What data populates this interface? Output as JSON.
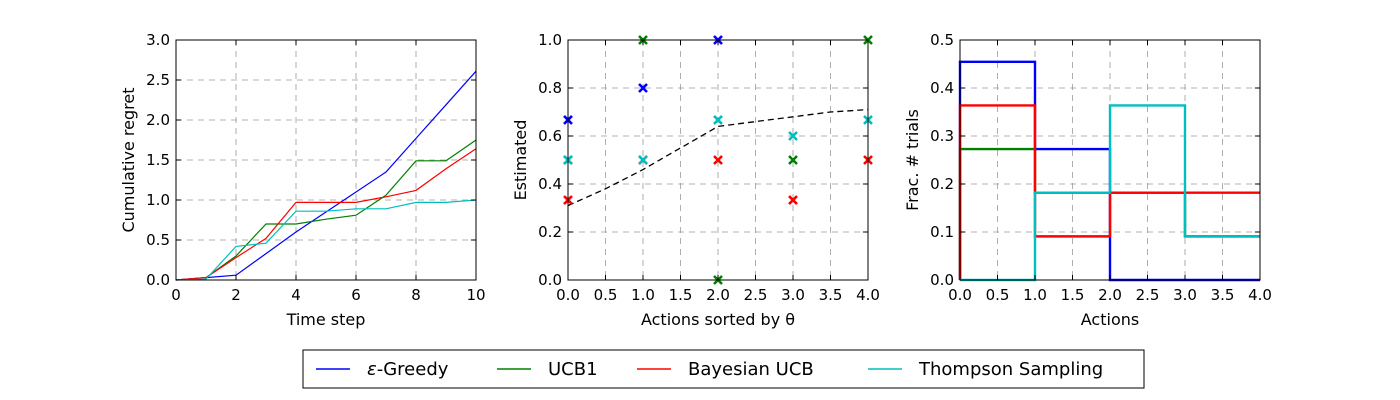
{
  "legend": {
    "entries": [
      {
        "prefix": "ε",
        "label": "-Greedy",
        "color": "#0000ff"
      },
      {
        "prefix": "",
        "label": "UCB1",
        "color": "#008000"
      },
      {
        "prefix": "",
        "label": "Bayesian UCB",
        "color": "#ff0000"
      },
      {
        "prefix": "",
        "label": "Thompson Sampling",
        "color": "#00bfbf"
      }
    ]
  },
  "chart_data": [
    {
      "type": "line",
      "xlabel": "Time step",
      "ylabel": "Cumulative regret",
      "xlim": [
        0,
        10
      ],
      "ylim": [
        0,
        3.0
      ],
      "xticks": [
        "0",
        "2",
        "4",
        "6",
        "8",
        "10"
      ],
      "yticks": [
        "0.0",
        "0.5",
        "1.0",
        "1.5",
        "2.0",
        "2.5",
        "3.0"
      ],
      "grid": true,
      "x": [
        0,
        1,
        2,
        3,
        4,
        5,
        6,
        7,
        8,
        9,
        10
      ],
      "series": [
        {
          "name": "ε-Greedy",
          "color": "#0000ff",
          "values": [
            0,
            0.03,
            0.06,
            0.33,
            0.6,
            0.85,
            1.1,
            1.35,
            1.77,
            2.19,
            2.61
          ]
        },
        {
          "name": "UCB1",
          "color": "#008000",
          "values": [
            0,
            0.03,
            0.3,
            0.7,
            0.7,
            0.76,
            0.81,
            1.06,
            1.49,
            1.49,
            1.75
          ]
        },
        {
          "name": "Bayesian UCB",
          "color": "#ff0000",
          "values": [
            0,
            0.03,
            0.28,
            0.52,
            0.97,
            0.97,
            0.97,
            1.04,
            1.12,
            1.39,
            1.64
          ]
        },
        {
          "name": "Thompson Sampling",
          "color": "#00bfbf",
          "values": [
            0,
            0.01,
            0.42,
            0.46,
            0.86,
            0.86,
            0.89,
            0.89,
            0.97,
            0.97,
            1.0
          ]
        }
      ]
    },
    {
      "type": "scatter",
      "xlabel": "Actions sorted by θ",
      "ylabel": "Estimated",
      "xlim": [
        0,
        4
      ],
      "ylim": [
        0,
        1.0
      ],
      "xticks": [
        "0.0",
        "0.5",
        "1.0",
        "1.5",
        "2.0",
        "2.5",
        "3.0",
        "3.5",
        "4.0"
      ],
      "yticks": [
        "0.0",
        "0.2",
        "0.4",
        "0.6",
        "0.8",
        "1.0"
      ],
      "grid": true,
      "marker": "x",
      "reference_line": {
        "style": "dashed",
        "color": "#000000",
        "x": [
          0,
          0.5,
          1,
          1.5,
          2,
          2.5,
          3,
          3.5,
          4
        ],
        "y": [
          0.31,
          0.38,
          0.46,
          0.55,
          0.64,
          0.66,
          0.68,
          0.7,
          0.71
        ]
      },
      "series": [
        {
          "name": "ε-Greedy",
          "color": "#0000ff",
          "x": [
            0,
            1,
            2
          ],
          "y": [
            0.667,
            0.8,
            1.0
          ]
        },
        {
          "name": "UCB1",
          "color": "#008000",
          "x": [
            0,
            1,
            2,
            3,
            4
          ],
          "y": [
            0.5,
            1.0,
            0.0,
            0.5,
            1.0
          ]
        },
        {
          "name": "Bayesian UCB",
          "color": "#ff0000",
          "x": [
            0,
            1,
            2,
            3,
            4
          ],
          "y": [
            0.333,
            0.5,
            0.5,
            0.333,
            0.5
          ]
        },
        {
          "name": "Thompson Sampling",
          "color": "#00bfbf",
          "x": [
            0,
            1,
            2,
            3,
            4
          ],
          "y": [
            0.5,
            0.5,
            0.667,
            0.6,
            0.667
          ]
        }
      ]
    },
    {
      "type": "step",
      "xlabel": "Actions",
      "ylabel": "Frac. # trials",
      "xlim": [
        0,
        4
      ],
      "ylim": [
        0,
        0.5
      ],
      "xticks": [
        "0.0",
        "0.5",
        "1.0",
        "1.5",
        "2.0",
        "2.5",
        "3.0",
        "3.5",
        "4.0"
      ],
      "yticks": [
        "0.0",
        "0.1",
        "0.2",
        "0.3",
        "0.4",
        "0.5"
      ],
      "grid": true,
      "bin_edges": [
        0,
        1,
        2,
        3,
        4
      ],
      "series": [
        {
          "name": "ε-Greedy",
          "color": "#0000ff",
          "values": [
            0.4545,
            0.2727,
            0.0,
            0.0
          ]
        },
        {
          "name": "UCB1",
          "color": "#008000",
          "values": [
            0.2727,
            0.1818,
            0.1818,
            0.0909
          ]
        },
        {
          "name": "Bayesian UCB",
          "color": "#ff0000",
          "values": [
            0.3636,
            0.0909,
            0.1818,
            0.1818
          ]
        },
        {
          "name": "Thompson Sampling",
          "color": "#00bfbf",
          "values": [
            0.0,
            0.1818,
            0.3636,
            0.0909
          ]
        }
      ]
    }
  ]
}
